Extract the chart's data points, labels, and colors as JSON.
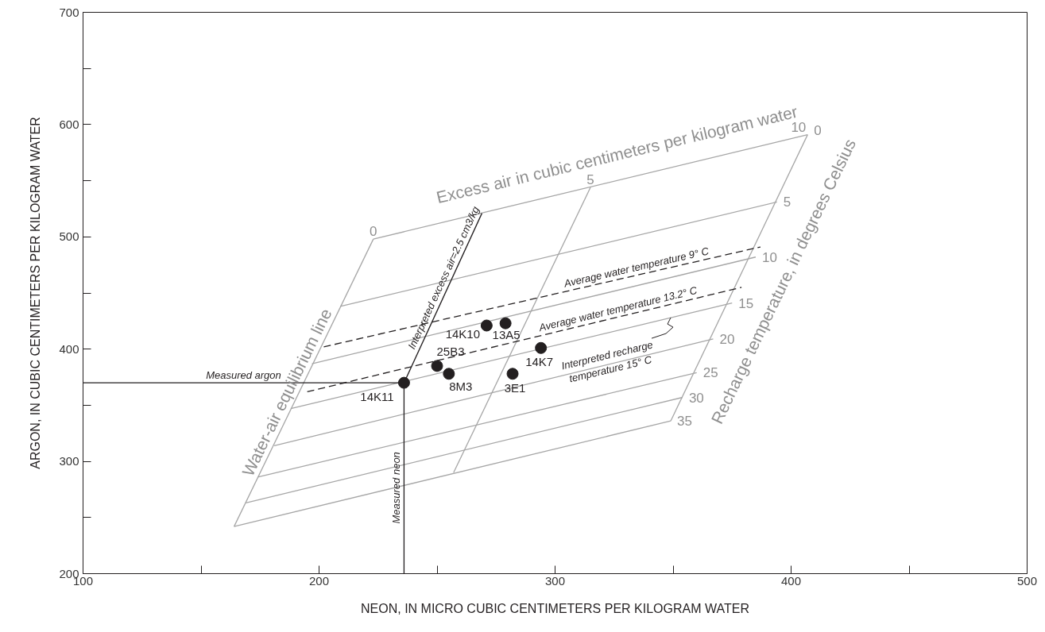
{
  "chart_data": {
    "type": "line",
    "xlabel": "NEON, IN MICRO CUBIC CENTIMETERS PER KILOGRAM WATER",
    "ylabel": "ARGON, IN CUBIC CENTIMETERS PER KILOGRAM WATER",
    "xlim": [
      100,
      500
    ],
    "ylim": [
      200,
      700
    ],
    "xticks": [
      100,
      {
        "value": 150,
        "label": null
      },
      200,
      {
        "value": 250,
        "label": null
      },
      300,
      {
        "value": 350,
        "label": null
      },
      400,
      {
        "value": 450,
        "label": null
      },
      500
    ],
    "yticks": [
      200,
      {
        "value": 250,
        "label": null
      },
      300,
      {
        "value": 350,
        "label": null
      },
      400,
      {
        "value": 450,
        "label": null
      },
      500,
      {
        "value": 550,
        "label": null
      },
      600,
      {
        "value": 650,
        "label": null
      },
      700
    ],
    "series": [
      {
        "name": "0",
        "color": "#a6a6a6",
        "x": [
          223,
          407
        ],
        "values": [
          498,
          591
        ]
      },
      {
        "name": "5",
        "color": "#a6a6a6",
        "x": [
          209,
          394
        ],
        "values": [
          438,
          531
        ]
      },
      {
        "name": "10",
        "color": "#a6a6a6",
        "x": [
          197,
          385
        ],
        "values": [
          387,
          482
        ]
      },
      {
        "name": "15",
        "color": "#a6a6a6",
        "x": [
          188,
          375
        ],
        "values": [
          347,
          441
        ]
      },
      {
        "name": "20",
        "color": "#a6a6a6",
        "x": [
          181,
          367
        ],
        "values": [
          314,
          409
        ]
      },
      {
        "name": "25",
        "color": "#a6a6a6",
        "x": [
          174,
          360
        ],
        "values": [
          286,
          379
        ]
      },
      {
        "name": "30",
        "color": "#a6a6a6",
        "x": [
          169,
          354
        ],
        "values": [
          263,
          357
        ]
      },
      {
        "name": "35",
        "color": "#a6a6a6",
        "x": [
          164,
          349
        ],
        "values": [
          242,
          336
        ]
      },
      {
        "name": "Water-air equilibrium line",
        "color": "#a6a6a6",
        "x": [
          164,
          223
        ],
        "values": [
          242,
          498
        ]
      },
      {
        "name": "5",
        "color": "#a6a6a6",
        "x": [
          257,
          315
        ],
        "values": [
          290,
          544
        ]
      },
      {
        "name": "10",
        "color": "#a6a6a6",
        "x": [
          349,
          407
        ],
        "values": [
          336,
          591
        ]
      },
      {
        "name": "Average water temperature 9° C",
        "color": "#231f20",
        "line_style": "dashed",
        "x": [
          202,
          387
        ],
        "values": [
          402,
          491
        ]
      },
      {
        "name": "Average water temperature 13.2° C",
        "color": "#231f20",
        "line_style": "dashed",
        "x": [
          195,
          379
        ],
        "values": [
          362,
          455
        ]
      },
      {
        "name": "Interpreted excess air=2.5 cm3/kg",
        "color": "#231f20",
        "x": [
          236,
          269
        ],
        "values": [
          370,
          521
        ]
      },
      {
        "name": "Measured argon",
        "color": "#231f20",
        "x": [
          100,
          236
        ],
        "values": [
          370,
          370
        ]
      },
      {
        "name": "Measured neon",
        "color": "#231f20",
        "x": [
          236,
          236
        ],
        "values": [
          200,
          370
        ]
      },
      {
        "name": "14K11",
        "type": "scatter",
        "marker": "circle",
        "color": "#231f20",
        "x": [
          236
        ],
        "values": [
          370
        ]
      },
      {
        "name": "25B3",
        "type": "scatter",
        "marker": "circle",
        "color": "#231f20",
        "x": [
          250
        ],
        "values": [
          385
        ]
      },
      {
        "name": "8M3",
        "type": "scatter",
        "marker": "circle",
        "color": "#231f20",
        "x": [
          255
        ],
        "values": [
          378
        ]
      },
      {
        "name": "14K10",
        "type": "scatter",
        "marker": "circle",
        "color": "#231f20",
        "x": [
          271
        ],
        "values": [
          421
        ]
      },
      {
        "name": "13A5",
        "type": "scatter",
        "marker": "circle",
        "color": "#231f20",
        "x": [
          279
        ],
        "values": [
          423
        ]
      },
      {
        "name": "14K7",
        "type": "scatter",
        "marker": "circle",
        "color": "#231f20",
        "x": [
          294
        ],
        "values": [
          401
        ]
      },
      {
        "name": "3E1",
        "type": "scatter",
        "marker": "circle",
        "color": "#231f20",
        "x": [
          282
        ],
        "values": [
          378
        ]
      }
    ],
    "annotations": [
      "0",
      "Excess air in cubic centimeters  per kilogram water",
      "Recharge temperature, in degrees Celsius",
      {
        "text": "Interpreted recharge\ntemperature 15° C",
        "x": 349,
        "y": 428
      }
    ]
  }
}
